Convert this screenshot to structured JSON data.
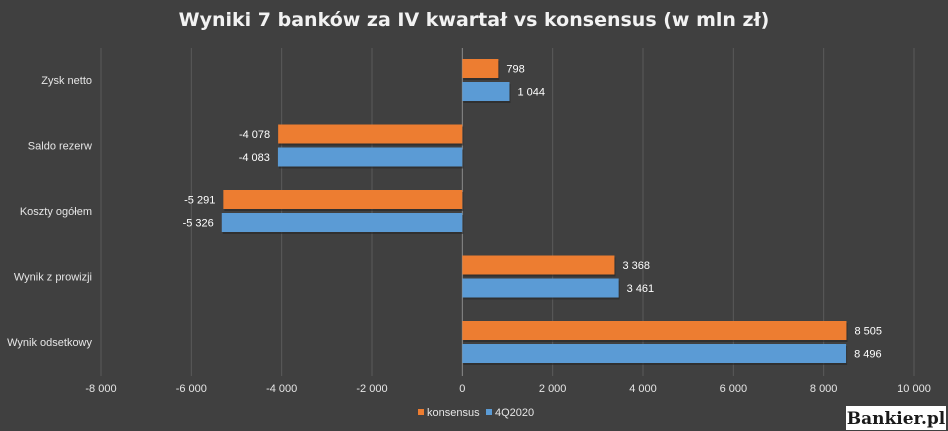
{
  "chart_data": {
    "type": "bar",
    "orientation": "horizontal",
    "title": "Wyniki 7 banków za IV kwartał vs konsensus (w mln zł)",
    "categories": [
      "Zysk netto",
      "Saldo rezerw",
      "Koszty ogółem",
      "Wynik z prowizji",
      "Wynik odsetkowy"
    ],
    "series": [
      {
        "name": "konsensus",
        "color": "#ed7d31",
        "values": [
          798,
          -4078,
          -5291,
          3368,
          8505
        ],
        "labels": [
          "798",
          "-4 078",
          "-5 291",
          "3 368",
          "8 505"
        ]
      },
      {
        "name": "4Q2020",
        "color": "#5b9bd5",
        "values": [
          1044,
          -4083,
          -5326,
          3461,
          8496
        ],
        "labels": [
          "1 044",
          "-4 083",
          "-5 326",
          "3 461",
          "8 496"
        ]
      }
    ],
    "xlim": [
      -8000,
      10000
    ],
    "xticks": [
      -8000,
      -6000,
      -4000,
      -2000,
      0,
      2000,
      4000,
      6000,
      8000,
      10000
    ],
    "xtick_labels": [
      "-8 000",
      "-6 000",
      "-4 000",
      "-2 000",
      "0",
      "2 000",
      "4 000",
      "6 000",
      "8 000",
      "10 000"
    ],
    "grid": true,
    "legend_position": "bottom"
  },
  "branding": {
    "logo_text": "Bankier.pl"
  }
}
